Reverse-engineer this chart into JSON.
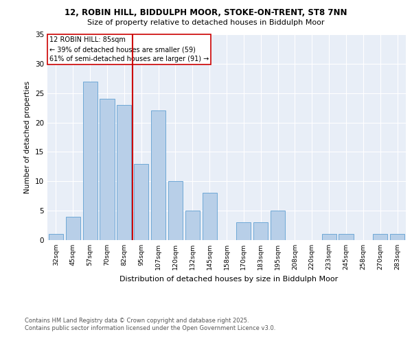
{
  "title1": "12, ROBIN HILL, BIDDULPH MOOR, STOKE-ON-TRENT, ST8 7NN",
  "title2": "Size of property relative to detached houses in Biddulph Moor",
  "xlabel": "Distribution of detached houses by size in Biddulph Moor",
  "ylabel": "Number of detached properties",
  "categories": [
    "32sqm",
    "45sqm",
    "57sqm",
    "70sqm",
    "82sqm",
    "95sqm",
    "107sqm",
    "120sqm",
    "132sqm",
    "145sqm",
    "158sqm",
    "170sqm",
    "183sqm",
    "195sqm",
    "208sqm",
    "220sqm",
    "233sqm",
    "245sqm",
    "258sqm",
    "270sqm",
    "283sqm"
  ],
  "values": [
    1,
    4,
    27,
    24,
    23,
    13,
    22,
    10,
    5,
    8,
    0,
    3,
    3,
    5,
    0,
    0,
    1,
    1,
    0,
    1,
    1
  ],
  "bar_color": "#b8cfe8",
  "bar_edge_color": "#6fa8d6",
  "vline_x": 4.5,
  "vline_color": "#cc0000",
  "annotation_title": "12 ROBIN HILL: 85sqm",
  "annotation_line2": "← 39% of detached houses are smaller (59)",
  "annotation_line3": "61% of semi-detached houses are larger (91) →",
  "annotation_box_color": "#cc0000",
  "ylim": [
    0,
    35
  ],
  "yticks": [
    0,
    5,
    10,
    15,
    20,
    25,
    30,
    35
  ],
  "bg_color": "#e8eef7",
  "footer1": "Contains HM Land Registry data © Crown copyright and database right 2025.",
  "footer2": "Contains public sector information licensed under the Open Government Licence v3.0."
}
